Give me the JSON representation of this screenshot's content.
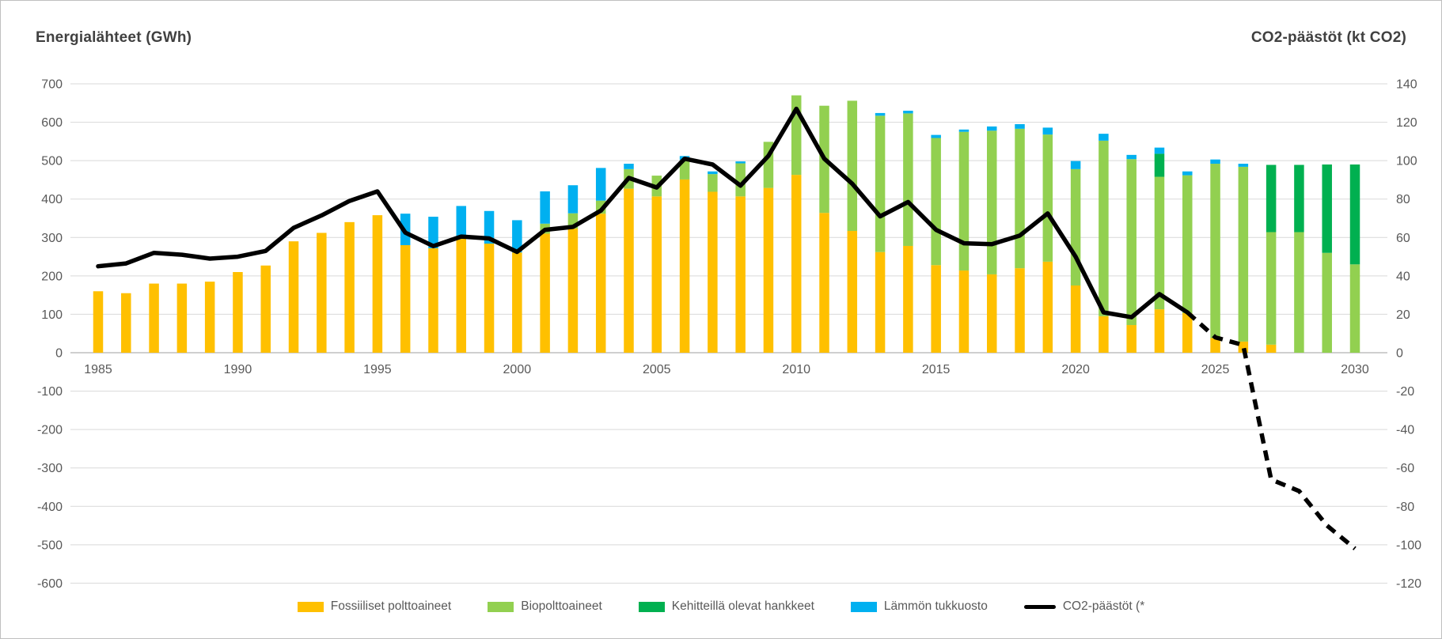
{
  "header": {
    "left_title": "Energialähteet (GWh)",
    "right_title": "CO2-päästöt (kt CO2)"
  },
  "legend": [
    {
      "label": "Fossiiliset polttoaineet",
      "marker": "rect",
      "color": "#FFC000"
    },
    {
      "label": "Biopolttoaineet",
      "marker": "rect",
      "color": "#92D050"
    },
    {
      "label": "Kehitteillä olevat hankkeet",
      "marker": "rect",
      "color": "#00B050"
    },
    {
      "label": "Lämmön tukkuosto",
      "marker": "rect",
      "color": "#00B0F0"
    },
    {
      "label": "CO2-päästöt (*",
      "marker": "line",
      "color": "#000000"
    }
  ],
  "chart_data": {
    "type": "bar",
    "subtype": "stacked-bars-with-line",
    "title": "",
    "grid": true,
    "categories": [
      1985,
      1986,
      1987,
      1988,
      1989,
      1990,
      1991,
      1992,
      1993,
      1994,
      1995,
      1996,
      1997,
      1998,
      1999,
      2000,
      2001,
      2002,
      2003,
      2004,
      2005,
      2006,
      2007,
      2008,
      2009,
      2010,
      2011,
      2012,
      2013,
      2014,
      2015,
      2016,
      2017,
      2018,
      2019,
      2020,
      2021,
      2022,
      2023,
      2024,
      2025,
      2026,
      2027,
      2028,
      2029,
      2030
    ],
    "x_tick_labels": [
      1985,
      1990,
      1995,
      2000,
      2005,
      2010,
      2015,
      2020,
      2025,
      2030
    ],
    "left_axis": {
      "title": "Energialähteet (GWh)",
      "min": -600,
      "max": 700,
      "step": 100
    },
    "right_axis": {
      "title": "CO2-päästöt (kt CO2)",
      "min": -120,
      "max": 140,
      "step": 20
    },
    "series": [
      {
        "name": "Fossiiliset polttoaineet",
        "type": "bar",
        "axis": "left",
        "color": "#FFC000",
        "values": [
          160,
          155,
          180,
          180,
          185,
          210,
          227,
          290,
          312,
          340,
          358,
          280,
          272,
          298,
          284,
          261,
          310,
          323,
          362,
          427,
          407,
          451,
          419,
          407,
          429,
          463,
          364,
          317,
          262,
          278,
          228,
          214,
          204,
          220,
          237,
          175,
          95,
          72,
          113,
          103,
          38,
          29,
          21,
          0,
          0,
          0
        ]
      },
      {
        "name": "Biopolttoaineet",
        "type": "bar",
        "axis": "left",
        "color": "#92D050",
        "values": [
          0,
          0,
          0,
          0,
          0,
          0,
          0,
          0,
          0,
          0,
          0,
          0,
          0,
          0,
          0,
          0,
          26,
          40,
          34,
          51,
          54,
          51,
          46,
          86,
          120,
          207,
          279,
          339,
          355,
          345,
          331,
          361,
          374,
          363,
          331,
          303,
          457,
          432,
          345,
          359,
          454,
          455,
          293,
          314,
          260,
          230
        ]
      },
      {
        "name": "Kehitteillä olevat hankkeet",
        "type": "bar",
        "axis": "left",
        "color": "#00B050",
        "values": [
          0,
          0,
          0,
          0,
          0,
          0,
          0,
          0,
          0,
          0,
          0,
          0,
          0,
          0,
          0,
          0,
          0,
          0,
          0,
          0,
          0,
          0,
          0,
          0,
          0,
          0,
          0,
          0,
          0,
          0,
          0,
          0,
          0,
          0,
          0,
          0,
          0,
          0,
          60,
          0,
          0,
          0,
          175,
          175,
          230,
          260
        ]
      },
      {
        "name": "Lämmön tukkuosto",
        "type": "bar",
        "axis": "left",
        "color": "#00B0F0",
        "values": [
          0,
          0,
          0,
          0,
          0,
          0,
          0,
          0,
          0,
          0,
          0,
          82,
          82,
          84,
          85,
          84,
          84,
          73,
          85,
          14,
          0,
          10,
          7,
          5,
          0,
          0,
          0,
          0,
          7,
          7,
          8,
          6,
          11,
          12,
          18,
          21,
          18,
          11,
          16,
          10,
          11,
          8,
          0,
          0,
          0,
          0
        ]
      },
      {
        "name": "CO2-päästöt (*",
        "type": "line",
        "axis": "right",
        "color": "#000000",
        "dashed_from_year": 2024,
        "values": [
          45,
          46.5,
          52,
          51,
          49,
          50,
          53,
          65,
          71.5,
          79,
          84,
          62.5,
          55.5,
          60.5,
          59.5,
          52.5,
          64,
          65.5,
          74,
          91,
          86,
          101,
          98,
          87,
          102.5,
          127,
          101,
          88,
          71,
          78.5,
          64,
          57,
          56.5,
          61,
          72.5,
          50,
          21,
          18.5,
          30.5,
          21,
          8,
          4,
          -66,
          -72,
          -90,
          -102
        ]
      }
    ]
  }
}
